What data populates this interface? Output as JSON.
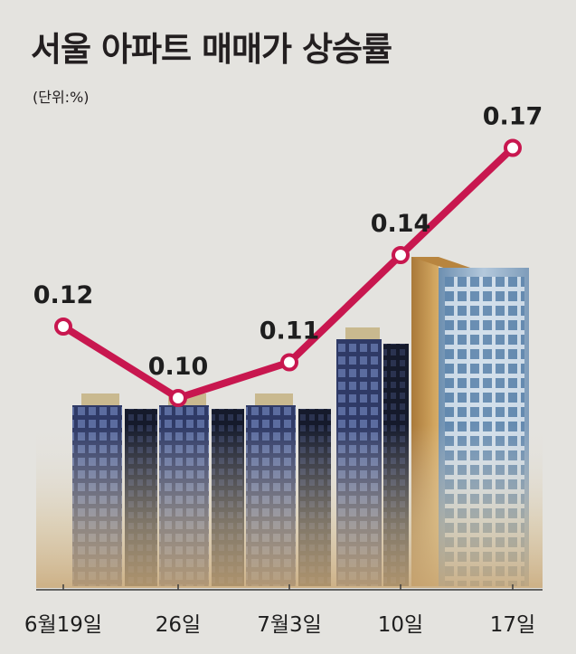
{
  "title": "서울 아파트 매매가 상승률",
  "unit": "(단위:%)",
  "chart_data": {
    "type": "line",
    "categories": [
      "6월19일",
      "26일",
      "7월3일",
      "10일",
      "17일"
    ],
    "values": [
      0.12,
      0.1,
      0.11,
      0.14,
      0.17
    ],
    "value_labels": [
      "0.12",
      "0.10",
      "0.11",
      "0.14",
      "0.17"
    ],
    "ylim": [
      0.08,
      0.18
    ],
    "line_color": "#c8174f",
    "marker_fill": "#ffffff"
  },
  "colors": {
    "background": "#e4e3df",
    "building_light": "#3c4b7a",
    "building_dark": "#1e2438",
    "tower_blue": "#9fb6cc",
    "tower_gold": "#c79a4f"
  }
}
